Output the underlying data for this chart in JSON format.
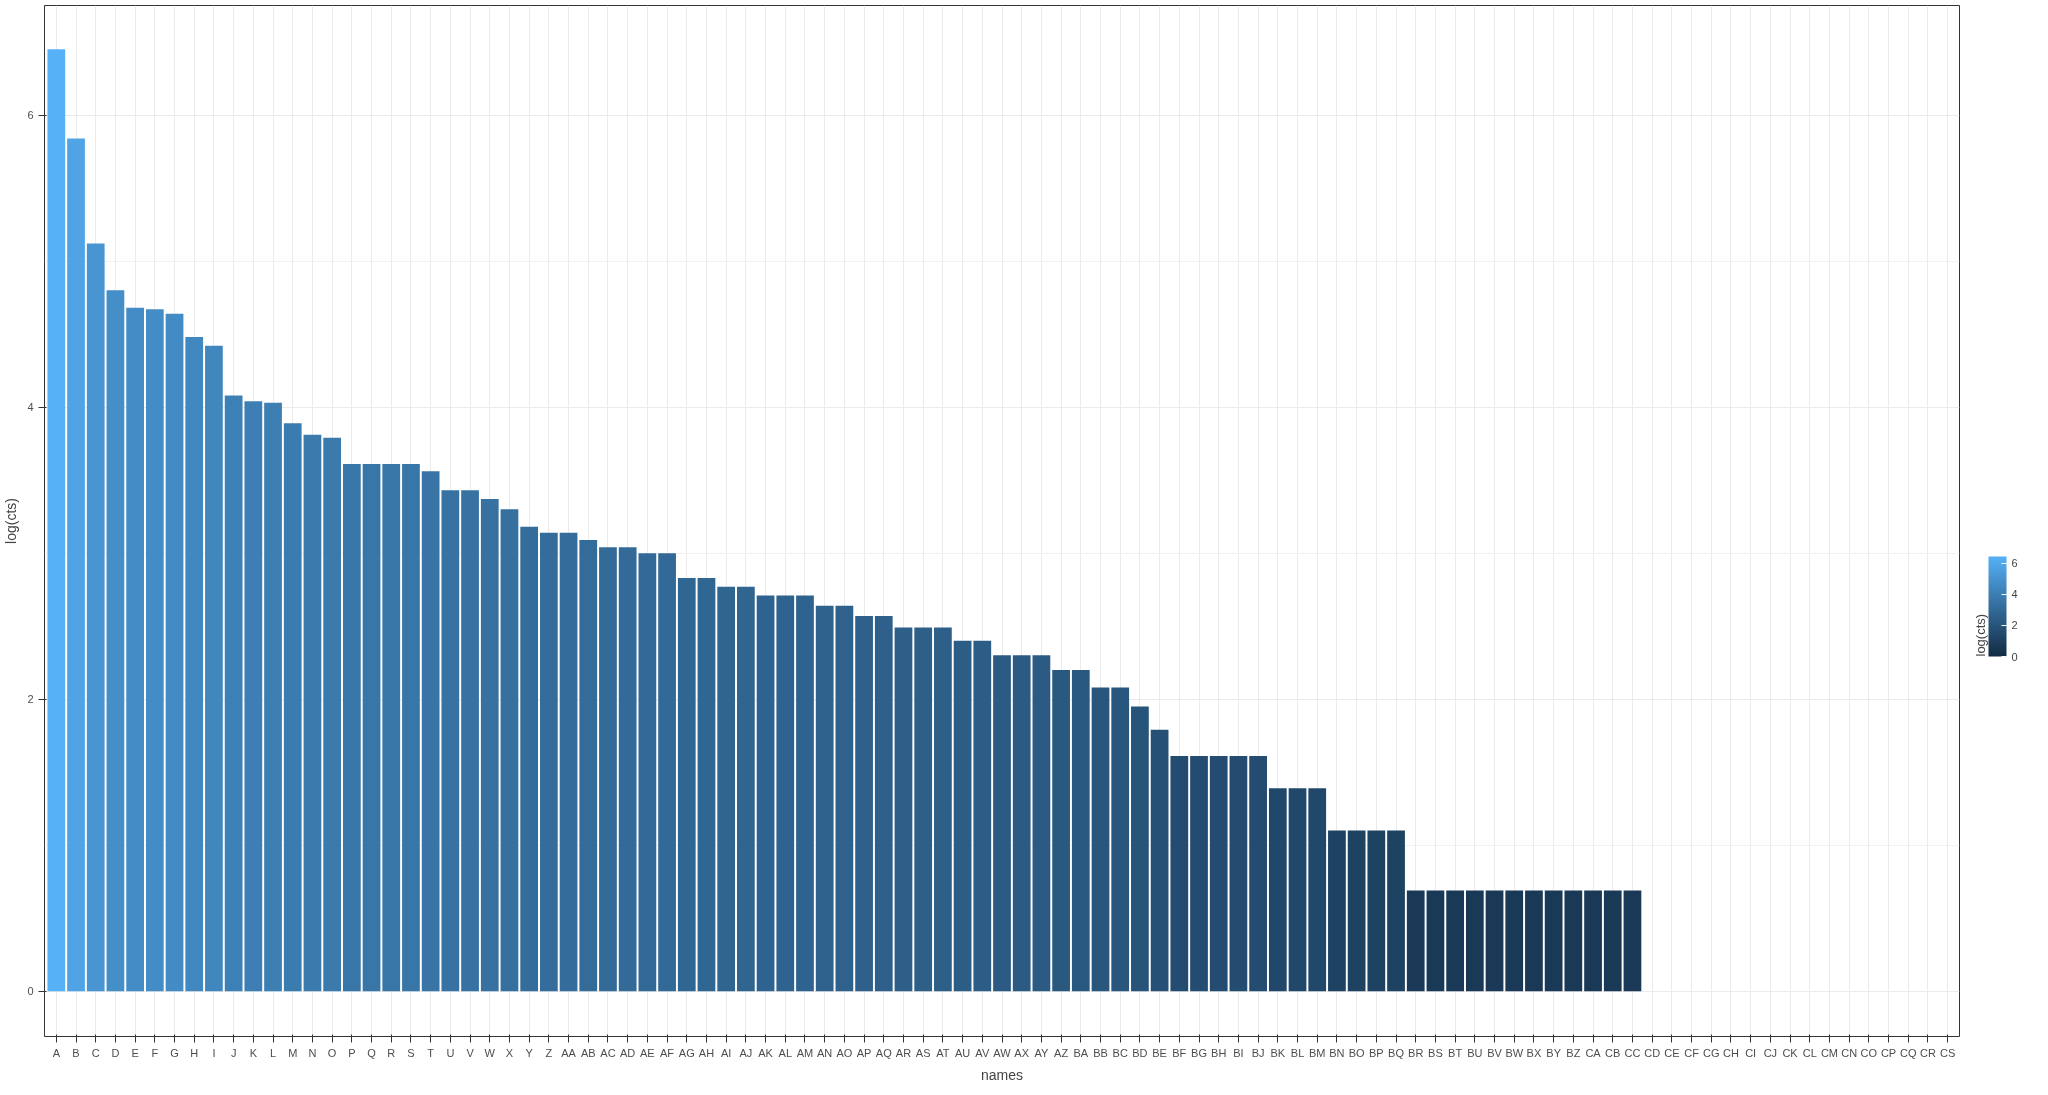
{
  "chart_data": {
    "type": "bar",
    "xlabel": "names",
    "ylabel": "log(cts)",
    "clabel": "log(cts)",
    "categories": [
      "A",
      "B",
      "C",
      "D",
      "E",
      "F",
      "G",
      "H",
      "I",
      "J",
      "K",
      "L",
      "M",
      "N",
      "O",
      "P",
      "Q",
      "R",
      "S",
      "T",
      "U",
      "V",
      "W",
      "X",
      "Y",
      "Z",
      "AA",
      "AB",
      "AC",
      "AD",
      "AE",
      "AF",
      "AG",
      "AH",
      "AI",
      "AJ",
      "AK",
      "AL",
      "AM",
      "AN",
      "AO",
      "AP",
      "AQ",
      "AR",
      "AS",
      "AT",
      "AU",
      "AV",
      "AW",
      "AX",
      "AY",
      "AZ",
      "BA",
      "BB",
      "BC",
      "BD",
      "BE",
      "BF",
      "BG",
      "BH",
      "BI",
      "BJ",
      "BK",
      "BL",
      "BM",
      "BN",
      "BO",
      "BP",
      "BQ",
      "BR",
      "BS",
      "BT",
      "BU",
      "BV",
      "BW",
      "BX",
      "BY",
      "BZ",
      "CA",
      "CB",
      "CC",
      "CD",
      "CE",
      "CF",
      "CG",
      "CH",
      "CI",
      "CJ",
      "CK",
      "CL",
      "CM",
      "CN",
      "CO",
      "CP",
      "CQ",
      "CR",
      "CS"
    ],
    "values": [
      6.45,
      5.84,
      5.12,
      4.8,
      4.68,
      4.67,
      4.64,
      4.48,
      4.42,
      4.08,
      4.04,
      4.03,
      3.89,
      3.81,
      3.79,
      3.61,
      3.61,
      3.61,
      3.61,
      3.56,
      3.43,
      3.43,
      3.37,
      3.3,
      3.18,
      3.14,
      3.14,
      3.09,
      3.04,
      3.04,
      3.0,
      3.0,
      2.83,
      2.83,
      2.77,
      2.77,
      2.71,
      2.71,
      2.71,
      2.64,
      2.64,
      2.57,
      2.57,
      2.49,
      2.49,
      2.49,
      2.4,
      2.4,
      2.3,
      2.3,
      2.3,
      2.2,
      2.2,
      2.08,
      2.08,
      1.95,
      1.79,
      1.61,
      1.61,
      1.61,
      1.61,
      1.61,
      1.39,
      1.39,
      1.39,
      1.1,
      1.1,
      1.1,
      1.1,
      0.69,
      0.69,
      0.69,
      0.69,
      0.69,
      0.69,
      0.69,
      0.69,
      0.69,
      0.69,
      0.69,
      0.69,
      0,
      0,
      0,
      0,
      0,
      0,
      0,
      0,
      0,
      0,
      0,
      0,
      0,
      0,
      0,
      0
    ],
    "clim": [
      0,
      6.45
    ],
    "cticks": [
      0,
      2,
      4,
      6
    ],
    "ylim": [
      -0.31,
      6.75
    ],
    "yticks": [
      0,
      2,
      4,
      6
    ],
    "grid": true
  }
}
